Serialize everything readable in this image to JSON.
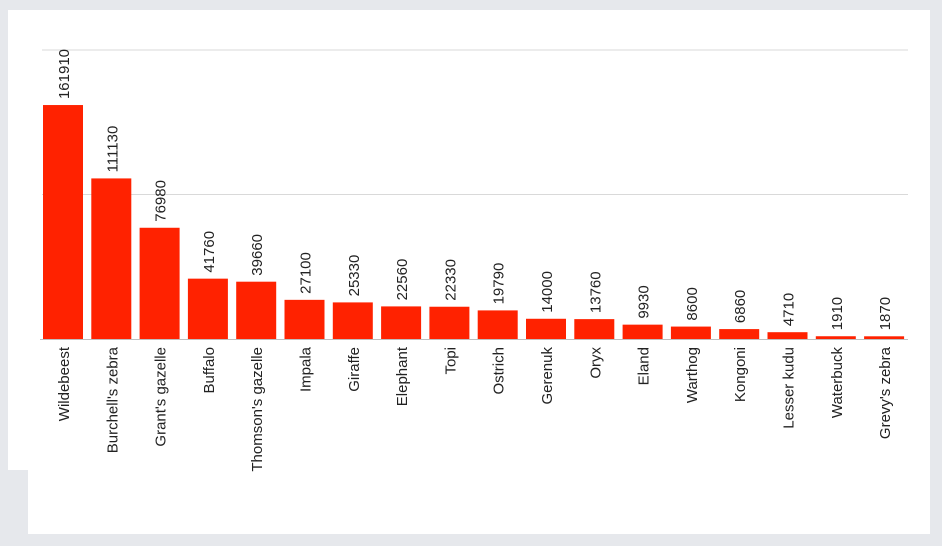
{
  "chart_data": {
    "type": "bar",
    "title": "",
    "xlabel": "",
    "ylabel": "",
    "categories": [
      "Wildebeest",
      "Burchell's zebra",
      "Grant's gazelle",
      "Buffalo",
      "Thomson's gazelle",
      "Impala",
      "Giraffe",
      "Elephant",
      "Topi",
      "Ostrich",
      "Gerenuk",
      "Oryx",
      "Eland",
      "Warthog",
      "Kongoni",
      "Lesser kudu",
      "Waterbuck",
      "Grevy's zebra"
    ],
    "values": [
      161910,
      111130,
      76980,
      41760,
      39660,
      27100,
      25330,
      22560,
      22330,
      19790,
      14000,
      13760,
      9930,
      8600,
      6860,
      4710,
      1910,
      1870
    ],
    "ylim": [
      0,
      200000
    ],
    "grid": true,
    "legend": "none",
    "colors": {
      "bar": "#ff2200",
      "grid": "#d9d9d9",
      "axis": "#bfbfbf"
    }
  }
}
